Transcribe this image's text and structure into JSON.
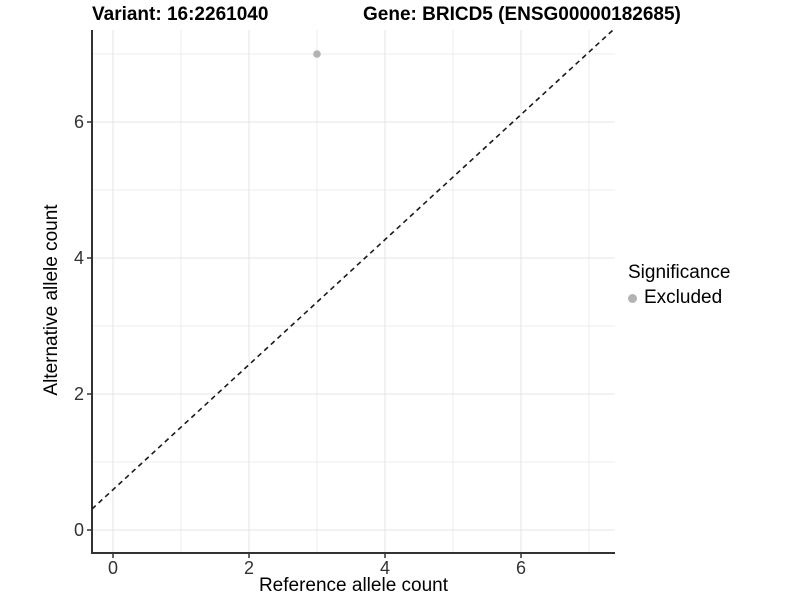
{
  "chart_data": {
    "type": "scatter",
    "titles": {
      "variant": "Variant: 16:2261040",
      "gene": "Gene: BRICD5 (ENSG00000182685)"
    },
    "xlabel": "Reference allele count",
    "ylabel": "Alternative allele count",
    "x_ticks": [
      0,
      2,
      4,
      6
    ],
    "y_ticks": [
      0,
      2,
      4,
      6
    ],
    "x_minor_gridlines": [
      1,
      3,
      5,
      7
    ],
    "y_minor_gridlines": [
      1,
      3,
      5,
      7
    ],
    "xlim": [
      -0.31,
      7.4
    ],
    "ylim": [
      -0.34,
      7.35
    ],
    "points": [
      {
        "x": 3,
        "y": 7,
        "significance": "Excluded"
      }
    ],
    "reference_line": {
      "slope": 1,
      "intercept": 0,
      "linetype": "dashed"
    },
    "legend": {
      "title": "Significance",
      "position": "right",
      "entries": [
        {
          "label": "Excluded",
          "color": "#b3b3b3"
        }
      ]
    },
    "grid": "on",
    "colors": {
      "background": "#ffffff",
      "grid_major": "#e4e4e4",
      "grid_minor": "#ededed",
      "axis_line": "#333333",
      "tick_mark": "#333333",
      "tick_text": "#333333",
      "title_text": "#000000",
      "point": "#b3b3b3",
      "dashed_line": "#1a1a1a"
    }
  }
}
